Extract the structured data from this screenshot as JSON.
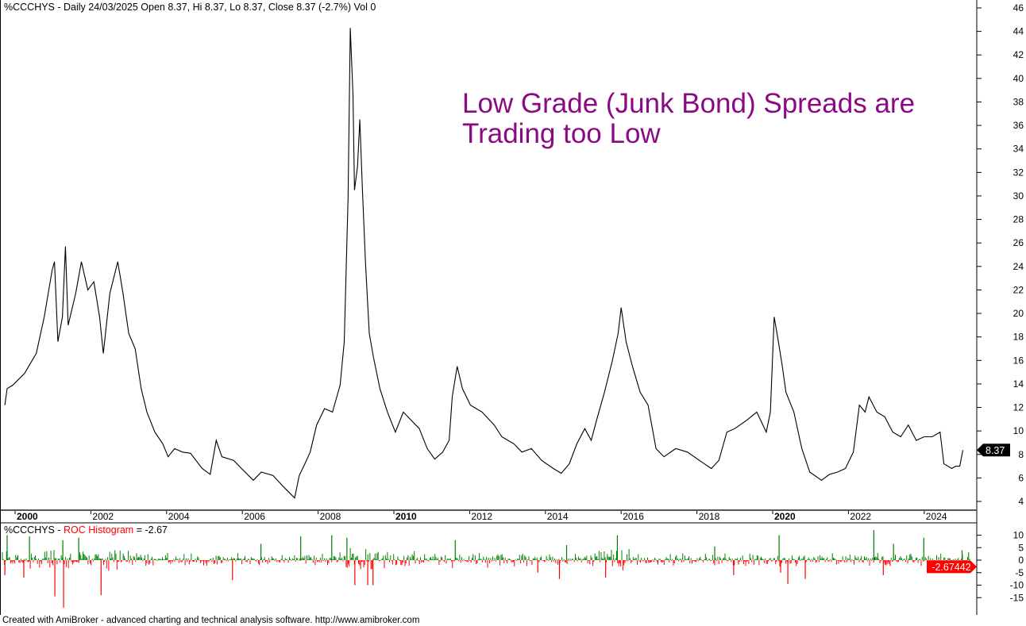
{
  "header": {
    "text": "%CCCHYS - Daily 24/03/2025 Open 8.37, Hi 8.37, Lo 8.37, Close 8.37 (-2.7%) Vol 0"
  },
  "annotation": {
    "line1": "Low Grade (Junk Bond) Spreads are",
    "line2": "Trading too Low",
    "color": "#8b0a84"
  },
  "footer": {
    "text": "Created with AmiBroker - advanced charting and technical analysis software. http://www.amibroker.com"
  },
  "chart_data": [
    {
      "type": "line",
      "symbol": "%CCCHYS",
      "last_value_label": "8.37",
      "color": "#000000",
      "ylim": [
        4,
        46
      ],
      "y_ticks": [
        "46",
        "44",
        "42",
        "40",
        "38",
        "36",
        "34",
        "32",
        "30",
        "28",
        "26",
        "24",
        "22",
        "20",
        "18",
        "16",
        "14",
        "12",
        "10",
        "8",
        "6",
        "4"
      ],
      "x_ticks": [
        {
          "label": "2000",
          "bold": true
        },
        {
          "label": "2002",
          "bold": false
        },
        {
          "label": "2004",
          "bold": false
        },
        {
          "label": "2006",
          "bold": false
        },
        {
          "label": "2008",
          "bold": false
        },
        {
          "label": "2010",
          "bold": true
        },
        {
          "label": "2012",
          "bold": false
        },
        {
          "label": "2014",
          "bold": false
        },
        {
          "label": "2016",
          "bold": false
        },
        {
          "label": "2018",
          "bold": false
        },
        {
          "label": "2020",
          "bold": true
        },
        {
          "label": "2022",
          "bold": false
        },
        {
          "label": "2024",
          "bold": false
        }
      ],
      "points": [
        [
          1999.73,
          12.2
        ],
        [
          1999.79,
          13.6
        ],
        [
          1999.94,
          13.9
        ],
        [
          2000.25,
          14.9
        ],
        [
          2000.56,
          16.6
        ],
        [
          2000.77,
          19.7
        ],
        [
          2000.98,
          23.7
        ],
        [
          2001.04,
          24.4
        ],
        [
          2001.13,
          17.6
        ],
        [
          2001.25,
          19.7
        ],
        [
          2001.33,
          25.7
        ],
        [
          2001.4,
          19.0
        ],
        [
          2001.6,
          21.7
        ],
        [
          2001.75,
          24.4
        ],
        [
          2001.92,
          22.0
        ],
        [
          2002.08,
          22.7
        ],
        [
          2002.23,
          19.7
        ],
        [
          2002.33,
          16.6
        ],
        [
          2002.5,
          21.7
        ],
        [
          2002.71,
          24.4
        ],
        [
          2002.85,
          21.7
        ],
        [
          2003.0,
          18.3
        ],
        [
          2003.17,
          17.0
        ],
        [
          2003.33,
          13.6
        ],
        [
          2003.48,
          11.6
        ],
        [
          2003.69,
          9.9
        ],
        [
          2003.9,
          8.9
        ],
        [
          2004.04,
          7.8
        ],
        [
          2004.21,
          8.5
        ],
        [
          2004.42,
          8.2
        ],
        [
          2004.63,
          8.1
        ],
        [
          2004.94,
          6.8
        ],
        [
          2005.15,
          6.3
        ],
        [
          2005.31,
          9.2
        ],
        [
          2005.46,
          7.8
        ],
        [
          2005.77,
          7.5
        ],
        [
          2005.98,
          6.8
        ],
        [
          2006.29,
          5.8
        ],
        [
          2006.5,
          6.5
        ],
        [
          2006.81,
          6.2
        ],
        [
          2007.13,
          5.1
        ],
        [
          2007.38,
          4.3
        ],
        [
          2007.5,
          6.2
        ],
        [
          2007.65,
          7.2
        ],
        [
          2007.79,
          8.2
        ],
        [
          2007.96,
          10.5
        ],
        [
          2008.17,
          11.9
        ],
        [
          2008.38,
          11.6
        ],
        [
          2008.58,
          13.9
        ],
        [
          2008.69,
          17.6
        ],
        [
          2008.79,
          29.8
        ],
        [
          2008.85,
          44.3
        ],
        [
          2008.92,
          38.6
        ],
        [
          2008.96,
          30.5
        ],
        [
          2009.04,
          32.5
        ],
        [
          2009.1,
          36.5
        ],
        [
          2009.17,
          30.5
        ],
        [
          2009.25,
          24.4
        ],
        [
          2009.35,
          18.3
        ],
        [
          2009.46,
          16.3
        ],
        [
          2009.63,
          13.6
        ],
        [
          2009.83,
          11.6
        ],
        [
          2010.04,
          9.9
        ],
        [
          2010.25,
          11.6
        ],
        [
          2010.46,
          10.9
        ],
        [
          2010.67,
          10.2
        ],
        [
          2010.88,
          8.5
        ],
        [
          2011.08,
          7.6
        ],
        [
          2011.29,
          8.2
        ],
        [
          2011.46,
          9.2
        ],
        [
          2011.54,
          12.9
        ],
        [
          2011.67,
          15.5
        ],
        [
          2011.81,
          13.6
        ],
        [
          2012.02,
          12.2
        ],
        [
          2012.33,
          11.6
        ],
        [
          2012.65,
          10.5
        ],
        [
          2012.85,
          9.5
        ],
        [
          2013.17,
          8.9
        ],
        [
          2013.38,
          8.2
        ],
        [
          2013.63,
          8.5
        ],
        [
          2013.9,
          7.5
        ],
        [
          2014.21,
          6.8
        ],
        [
          2014.42,
          6.4
        ],
        [
          2014.63,
          7.2
        ],
        [
          2014.83,
          8.9
        ],
        [
          2015.04,
          10.2
        ],
        [
          2015.21,
          9.2
        ],
        [
          2015.35,
          10.9
        ],
        [
          2015.56,
          13.3
        ],
        [
          2015.77,
          16.0
        ],
        [
          2015.92,
          18.3
        ],
        [
          2016.0,
          20.5
        ],
        [
          2016.13,
          17.6
        ],
        [
          2016.29,
          15.6
        ],
        [
          2016.5,
          13.3
        ],
        [
          2016.71,
          12.2
        ],
        [
          2016.92,
          8.5
        ],
        [
          2017.13,
          7.8
        ],
        [
          2017.44,
          8.5
        ],
        [
          2017.75,
          8.2
        ],
        [
          2018.06,
          7.5
        ],
        [
          2018.38,
          6.8
        ],
        [
          2018.58,
          7.5
        ],
        [
          2018.79,
          9.9
        ],
        [
          2019.0,
          10.2
        ],
        [
          2019.31,
          10.9
        ],
        [
          2019.58,
          11.6
        ],
        [
          2019.83,
          9.9
        ],
        [
          2019.94,
          11.6
        ],
        [
          2020.04,
          19.7
        ],
        [
          2020.15,
          17.6
        ],
        [
          2020.25,
          15.6
        ],
        [
          2020.35,
          13.3
        ],
        [
          2020.56,
          11.6
        ],
        [
          2020.77,
          8.5
        ],
        [
          2020.98,
          6.5
        ],
        [
          2021.29,
          5.8
        ],
        [
          2021.5,
          6.3
        ],
        [
          2021.71,
          6.5
        ],
        [
          2021.92,
          6.8
        ],
        [
          2022.13,
          8.2
        ],
        [
          2022.29,
          12.2
        ],
        [
          2022.44,
          11.6
        ],
        [
          2022.54,
          12.9
        ],
        [
          2022.75,
          11.6
        ],
        [
          2022.96,
          11.2
        ],
        [
          2023.17,
          9.9
        ],
        [
          2023.38,
          9.5
        ],
        [
          2023.58,
          10.5
        ],
        [
          2023.79,
          9.2
        ],
        [
          2024.0,
          9.5
        ],
        [
          2024.21,
          9.5
        ],
        [
          2024.42,
          9.9
        ],
        [
          2024.52,
          7.2
        ],
        [
          2024.73,
          6.8
        ],
        [
          2024.83,
          7.0
        ],
        [
          2024.94,
          7.0
        ],
        [
          2025.02,
          8.37
        ]
      ]
    },
    {
      "type": "bar",
      "title_symbol": "%CCCHYS - ",
      "title_indicator": "ROC Histogram",
      "title_value": " = -2.67",
      "last_value_label": "-2.67442",
      "positive_color": "#008000",
      "negative_color": "#ff0000",
      "ylim": [
        -17,
        12
      ],
      "y_ticks": [
        {
          "label": "10",
          "value": 10
        },
        {
          "label": "5",
          "value": 5
        },
        {
          "label": "0",
          "value": 0
        },
        {
          "label": "-5",
          "value": -5
        },
        {
          "label": "-10",
          "value": -10
        },
        {
          "label": "-15",
          "value": -15
        }
      ],
      "spikes": [
        [
          1999.79,
          10
        ],
        [
          2000.38,
          9.5
        ],
        [
          2001.26,
          8
        ],
        [
          2001.68,
          9
        ],
        [
          2006.49,
          6.5
        ],
        [
          2007.54,
          9.5
        ],
        [
          2008.36,
          10
        ],
        [
          2008.76,
          9
        ],
        [
          2011.62,
          8
        ],
        [
          2014.56,
          6
        ],
        [
          2015.9,
          10
        ],
        [
          2018.47,
          5.5
        ],
        [
          2020.17,
          10
        ],
        [
          2022.67,
          12
        ],
        [
          2023.19,
          6.5
        ],
        [
          2023.99,
          9
        ],
        [
          2025.0,
          4
        ],
        [
          1999.73,
          -6
        ],
        [
          2000.23,
          -7
        ],
        [
          2001.05,
          -14.5
        ],
        [
          2001.28,
          -19
        ],
        [
          2002.27,
          -14
        ],
        [
          2005.74,
          -8
        ],
        [
          2008.97,
          -10
        ],
        [
          2009.31,
          -10
        ],
        [
          2009.45,
          -10
        ],
        [
          2013.8,
          -5
        ],
        [
          2014.37,
          -7.5
        ],
        [
          2015.59,
          -7
        ],
        [
          2018.97,
          -6
        ],
        [
          2020.21,
          -5
        ],
        [
          2020.4,
          -9.5
        ],
        [
          2020.86,
          -7.5
        ],
        [
          2022.92,
          -6
        ],
        [
          2025.02,
          -2.67
        ]
      ]
    }
  ]
}
